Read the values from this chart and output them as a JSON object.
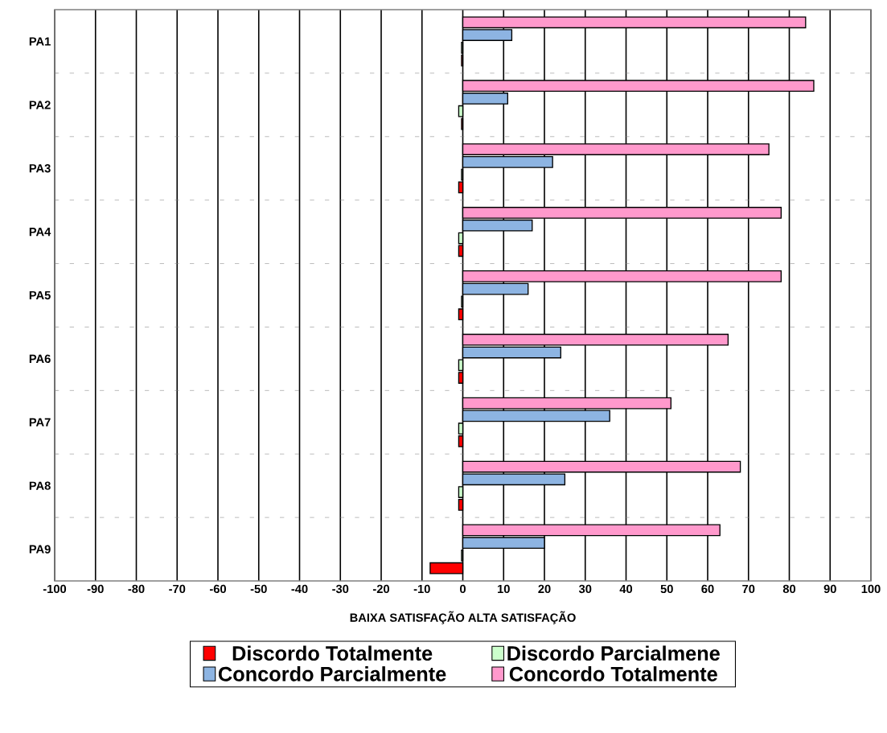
{
  "chart_data": {
    "type": "bar",
    "orientation": "horizontal",
    "categories": [
      "PA1",
      "PA2",
      "PA3",
      "PA4",
      "PA5",
      "PA6",
      "PA7",
      "PA8",
      "PA9"
    ],
    "xlabel": "BAIXA SATISFAÇÃO     ALTA SATISFAÇÃO",
    "xlim": [
      -100,
      100
    ],
    "xticks": [
      -100,
      -90,
      -80,
      -70,
      -60,
      -50,
      -40,
      -30,
      -20,
      -10,
      0,
      10,
      20,
      30,
      40,
      50,
      60,
      70,
      80,
      90,
      100
    ],
    "grid": true,
    "legend": "bottom",
    "series": [
      {
        "name": "Discordo Totalmente",
        "color": "#ff0000",
        "values": [
          -0.3,
          -0.3,
          -1,
          -1,
          -1,
          -1,
          -1,
          -1,
          -8
        ]
      },
      {
        "name": "Discordo Parcialmene",
        "color": "#ccffcc",
        "values": [
          -0.3,
          -1,
          -0.3,
          -1,
          -0.3,
          -1,
          -1,
          -1,
          -0.3
        ]
      },
      {
        "name": "Concordo Parcialmente",
        "color": "#8db4e2",
        "values": [
          12,
          11,
          22,
          17,
          16,
          24,
          36,
          25,
          20
        ]
      },
      {
        "name": "Concordo Totalmente",
        "color": "#ff99cc",
        "values": [
          84,
          86,
          75,
          78,
          78,
          65,
          51,
          68,
          63
        ]
      }
    ]
  }
}
